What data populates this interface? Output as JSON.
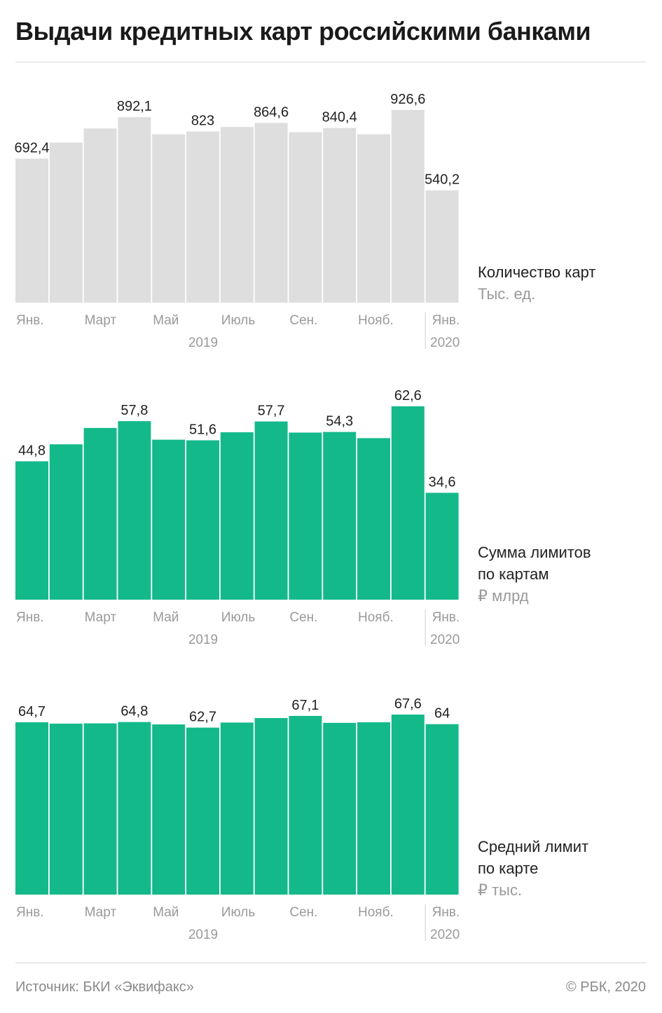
{
  "title": "Выдачи кредитных карт российскими банками",
  "footer": {
    "source": "Источник: БКИ «Эквифакс»",
    "copyright": "© РБК, 2020"
  },
  "colors": {
    "gray_bar": "#dedede",
    "green_bar": "#14b98a",
    "axis_text": "#9a9a9a",
    "value_text": "#222222"
  },
  "axis": {
    "month_labels": [
      "Янв.",
      "",
      "Март",
      "",
      "Май",
      "",
      "Июль",
      "",
      "Сен.",
      "",
      "Нояб.",
      "",
      "Янв."
    ],
    "year_2019": "2019",
    "year_2020": "2020"
  },
  "chart_data": [
    {
      "type": "bar",
      "legend_name": [
        "Количество карт"
      ],
      "legend_unit": "Тыс. ед.",
      "color": "#dedede",
      "categories": [
        "Янв. 2019",
        "Фев. 2019",
        "Март 2019",
        "Апр. 2019",
        "Май 2019",
        "Июнь 2019",
        "Июль 2019",
        "Авг. 2019",
        "Сен. 2019",
        "Окт. 2019",
        "Нояб. 2019",
        "Дек. 2019",
        "Янв. 2020"
      ],
      "values": [
        692.4,
        770,
        838,
        892.1,
        810,
        823,
        845,
        864.6,
        820,
        840.4,
        810,
        926.6,
        540.2
      ],
      "data_labels": [
        "692,4",
        "",
        "",
        "892,1",
        "",
        "823",
        "",
        "864,6",
        "",
        "840,4",
        "",
        "926,6",
        "540,2"
      ],
      "ylim": [
        0,
        926.6
      ]
    },
    {
      "type": "bar",
      "legend_name": [
        "Сумма лимитов",
        "по картам"
      ],
      "legend_unit": "₽ млрд",
      "color": "#14b98a",
      "categories": [
        "Янв. 2019",
        "Фев. 2019",
        "Март 2019",
        "Апр. 2019",
        "Май 2019",
        "Июнь 2019",
        "Июль 2019",
        "Авг. 2019",
        "Сен. 2019",
        "Окт. 2019",
        "Нояб. 2019",
        "Дек. 2019",
        "Янв. 2020"
      ],
      "values": [
        44.8,
        50.3,
        55.6,
        57.8,
        51.8,
        51.6,
        54.2,
        57.7,
        54.1,
        54.3,
        52.3,
        62.6,
        34.6
      ],
      "data_labels": [
        "44,8",
        "",
        "",
        "57,8",
        "",
        "51,6",
        "",
        "57,7",
        "",
        "54,3",
        "",
        "62,6",
        "34,6"
      ],
      "ylim": [
        0,
        62.6
      ]
    },
    {
      "type": "bar",
      "legend_name": [
        "Средний лимит",
        "по карте"
      ],
      "legend_unit": "₽ тыс.",
      "color": "#14b98a",
      "categories": [
        "Янв. 2019",
        "Фев. 2019",
        "Март 2019",
        "Апр. 2019",
        "Май 2019",
        "Июнь 2019",
        "Июль 2019",
        "Авг. 2019",
        "Сен. 2019",
        "Окт. 2019",
        "Нояб. 2019",
        "Дек. 2019",
        "Янв. 2020"
      ],
      "values": [
        64.7,
        64.2,
        64.3,
        64.8,
        63.9,
        62.7,
        64.6,
        66.3,
        67.1,
        64.5,
        64.7,
        67.6,
        64
      ],
      "data_labels": [
        "64,7",
        "",
        "",
        "64,8",
        "",
        "62,7",
        "",
        "",
        "67,1",
        "",
        "",
        "67,6",
        "64"
      ],
      "ylim": [
        0,
        67.6
      ]
    }
  ]
}
